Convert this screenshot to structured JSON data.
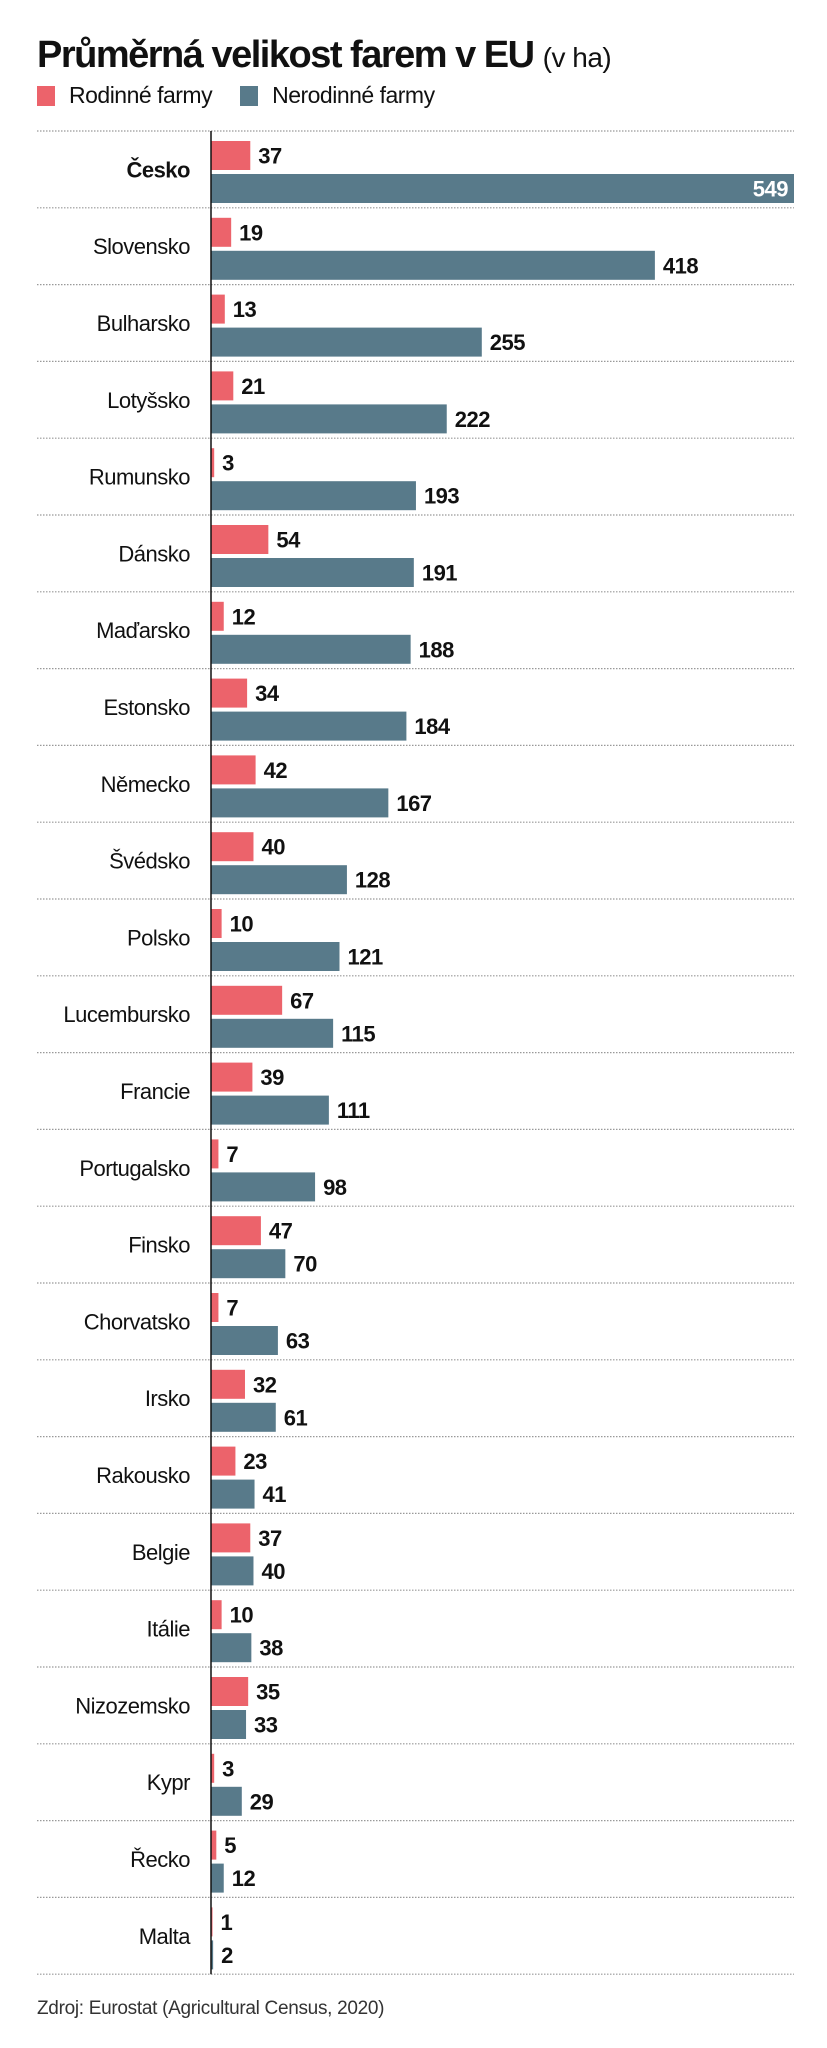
{
  "chart_data": {
    "type": "bar",
    "orientation": "horizontal",
    "title": "Průměrná velikost farem v EU",
    "unit": "(v ha)",
    "categories": [
      "Česko",
      "Slovensko",
      "Bulharsko",
      "Lotyšsko",
      "Rumunsko",
      "Dánsko",
      "Maďarsko",
      "Estonsko",
      "Německo",
      "Švédsko",
      "Polsko",
      "Lucembursko",
      "Francie",
      "Portugalsko",
      "Finsko",
      "Chorvatsko",
      "Irsko",
      "Rakousko",
      "Belgie",
      "Itálie",
      "Nizozemsko",
      "Kypr",
      "Řecko",
      "Malta"
    ],
    "highlighted_category": "Česko",
    "series": [
      {
        "name": "Rodinné farmy",
        "color": "#ec636b",
        "values": [
          37,
          19,
          13,
          21,
          3,
          54,
          12,
          34,
          42,
          40,
          10,
          67,
          39,
          7,
          47,
          7,
          32,
          23,
          37,
          10,
          35,
          3,
          5,
          1
        ]
      },
      {
        "name": "Nerodinné farmy",
        "color": "#587a8a",
        "values": [
          549,
          418,
          255,
          222,
          193,
          191,
          188,
          184,
          167,
          128,
          121,
          115,
          111,
          98,
          70,
          63,
          61,
          41,
          40,
          38,
          33,
          29,
          12,
          2
        ]
      }
    ],
    "xlim": [
      0,
      549
    ],
    "grid": false,
    "legend_position": "top-left",
    "source": "Zdroj: Eurostat (Agricultural Census, 2020)"
  }
}
